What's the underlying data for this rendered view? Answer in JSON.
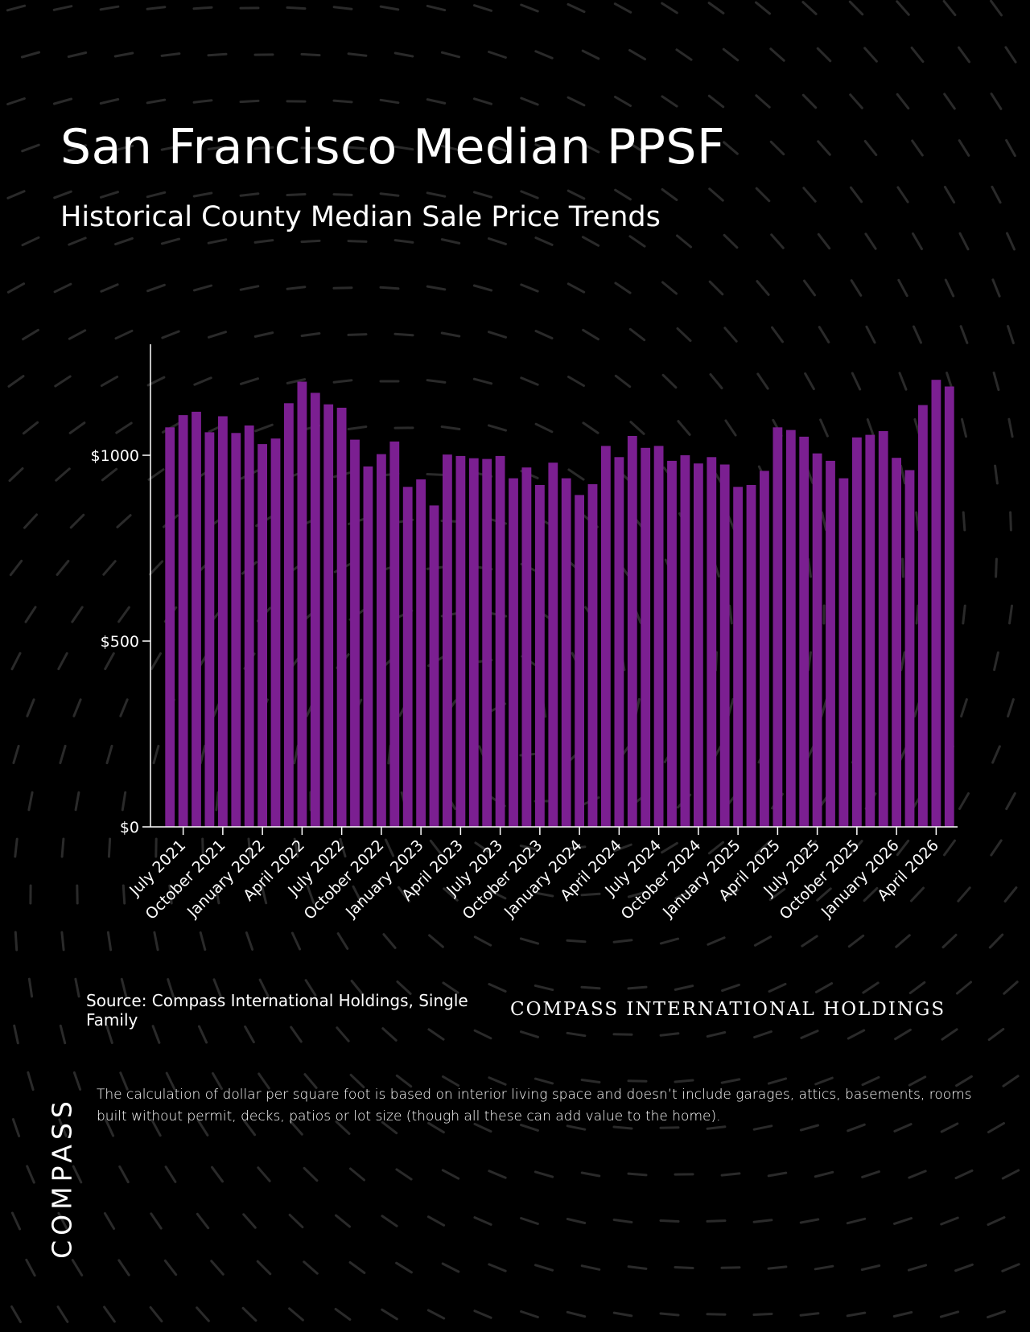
{
  "header": {
    "title": "San Francisco Median PPSF",
    "subtitle": "Historical County Median Sale Price Trends"
  },
  "footer": {
    "source": "Source: Compass International Holdings, Single Family",
    "brand_line": "COMPASS INTERNATIONAL HOLDINGS",
    "footnote": "The calculation of dollar per square foot is based on interior living space and doesn’t include garages, attics, basements, rooms built without permit, decks, patios or lot size (though all these can add value to the home).",
    "logo": "COMPASS"
  },
  "chart_data": {
    "type": "bar",
    "bar_color": "#7B1F91",
    "axis_color": "#FFFFFF",
    "background_color": "#000000",
    "ylim": [
      0,
      1300
    ],
    "y_ticks": [
      {
        "value": 0,
        "label": "$0"
      },
      {
        "value": 500,
        "label": "$500"
      },
      {
        "value": 1000,
        "label": "$1000"
      }
    ],
    "categories": [
      "June 2021",
      "July 2021",
      "August 2021",
      "September 2021",
      "October 2021",
      "November 2021",
      "December 2021",
      "January 2022",
      "February 2022",
      "March 2022",
      "April 2022",
      "May 2022",
      "June 2022",
      "July 2022",
      "August 2022",
      "September 2022",
      "October 2022",
      "November 2022",
      "December 2022",
      "January 2023",
      "February 2023",
      "March 2023",
      "April 2023",
      "May 2023",
      "June 2023",
      "July 2023",
      "August 2023",
      "September 2023",
      "October 2023",
      "November 2023",
      "December 2023",
      "January 2024",
      "February 2024",
      "March 2024",
      "April 2024",
      "May 2024",
      "June 2024",
      "July 2024",
      "August 2024",
      "September 2024",
      "October 2024",
      "November 2024",
      "December 2024",
      "January 2025",
      "February 2025",
      "March 2025",
      "April 2025",
      "May 2025",
      "June 2025",
      "July 2025",
      "August 2025",
      "September 2025",
      "October 2025",
      "November 2025",
      "December 2025",
      "January 2026",
      "February 2026",
      "March 2026",
      "April 2026",
      "May 2026"
    ],
    "values": [
      1075,
      1108,
      1117,
      1062,
      1105,
      1060,
      1080,
      1030,
      1045,
      1140,
      1198,
      1168,
      1137,
      1128,
      1042,
      970,
      1003,
      1037,
      915,
      935,
      865,
      1002,
      998,
      992,
      990,
      998,
      938,
      967,
      920,
      980,
      938,
      893,
      922,
      1025,
      995,
      1052,
      1020,
      1025,
      985,
      1000,
      978,
      995,
      975,
      915,
      920,
      958,
      1075,
      1068,
      1050,
      1005,
      985,
      938,
      1048,
      1055,
      1065,
      993,
      960,
      1135,
      1203,
      1185
    ],
    "x_tick_labels": [
      {
        "index": 1,
        "label": "July 2021"
      },
      {
        "index": 4,
        "label": "October 2021"
      },
      {
        "index": 7,
        "label": "January 2022"
      },
      {
        "index": 10,
        "label": "April 2022"
      },
      {
        "index": 13,
        "label": "July 2022"
      },
      {
        "index": 16,
        "label": "October 2022"
      },
      {
        "index": 19,
        "label": "January 2023"
      },
      {
        "index": 22,
        "label": "April 2023"
      },
      {
        "index": 25,
        "label": "July 2023"
      },
      {
        "index": 28,
        "label": "October 2023"
      },
      {
        "index": 31,
        "label": "January 2024"
      },
      {
        "index": 34,
        "label": "April 2024"
      },
      {
        "index": 37,
        "label": "July 2024"
      },
      {
        "index": 40,
        "label": "October 2024"
      },
      {
        "index": 43,
        "label": "January 2025"
      },
      {
        "index": 46,
        "label": "April 2025"
      },
      {
        "index": 49,
        "label": "July 2025"
      },
      {
        "index": 52,
        "label": "October 2025"
      },
      {
        "index": 55,
        "label": "January 2026"
      },
      {
        "index": 58,
        "label": "April 2026"
      }
    ]
  }
}
